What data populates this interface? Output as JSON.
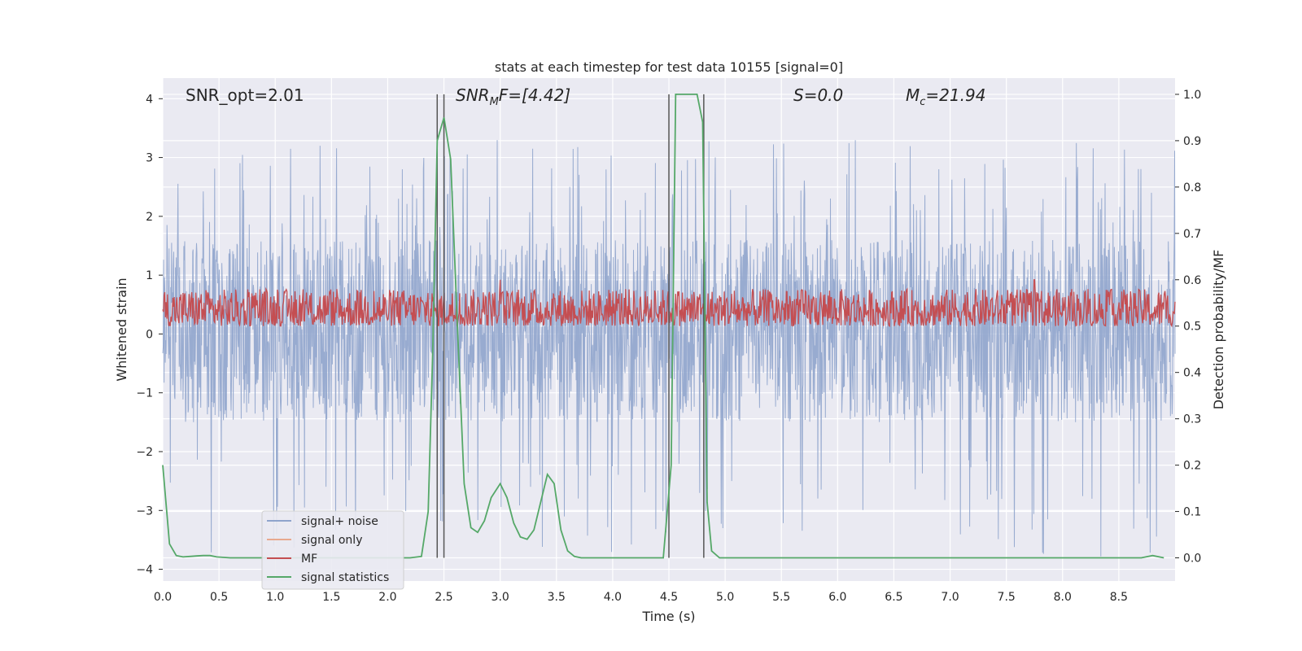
{
  "chart_data": {
    "type": "line",
    "title": "stats at each timestep for test data 10155 [signal=0]",
    "xlabel": "Time (s)",
    "ylabel_left": "Whitened strain",
    "ylabel_right": "Detection probability/MF",
    "xlim": [
      0.0,
      9.0
    ],
    "ylim_left": [
      -4.2,
      4.35
    ],
    "ylim_right": [
      -0.05,
      1.035
    ],
    "x_ticks": [
      "0.0",
      "0.5",
      "1.0",
      "1.5",
      "2.0",
      "2.5",
      "3.0",
      "3.5",
      "4.0",
      "4.5",
      "5.0",
      "5.5",
      "6.0",
      "6.5",
      "7.0",
      "7.5",
      "8.0",
      "8.5"
    ],
    "y_left_ticks": [
      "4",
      "3",
      "2",
      "1",
      "0",
      "−1",
      "−2",
      "−3",
      "−4"
    ],
    "y_right_ticks": [
      "1.0",
      "0.9",
      "0.8",
      "0.7",
      "0.6",
      "0.5",
      "0.4",
      "0.3",
      "0.2",
      "0.1",
      "0.0"
    ],
    "grid": true,
    "legend_position": "lower-left",
    "annotations": {
      "snr_opt": "SNR_opt=2.01",
      "snr_mf_base": "SNR",
      "snr_mf_sub": "M",
      "snr_mf_rest": "F=[4.42]",
      "s_label": "S=0.0",
      "mc_base": "M",
      "mc_sub": "c",
      "mc_rest": "=21.94"
    },
    "vertical_markers": [
      2.44,
      2.5,
      4.5,
      4.81
    ],
    "noise_envelope": {
      "typical_range": [
        -1.5,
        1.6
      ],
      "extreme_range": [
        -3.8,
        3.3
      ]
    },
    "series": [
      {
        "name": "signal+ noise",
        "color": "#8fa4cc",
        "axis": "left",
        "description_values": "dense noise, mostly within [-1.5, 1.6], peaks up to about 3.3 and down to about -3.8"
      },
      {
        "name": "signal only",
        "color": "#e8a98f",
        "axis": "left",
        "values": []
      },
      {
        "name": "MF",
        "color": "#c44e52",
        "axis": "right",
        "typical_range": [
          0.5,
          0.58
        ],
        "peak_values": [
          [
            0.92,
            0.58
          ],
          [
            3.0,
            0.6
          ],
          [
            7.75,
            0.6
          ]
        ]
      },
      {
        "name": "signal statistics",
        "color": "#55a868",
        "axis": "right",
        "x": [
          0.0,
          0.06,
          0.12,
          0.18,
          0.24,
          0.3,
          0.36,
          0.42,
          0.48,
          0.6,
          1.0,
          1.5,
          2.0,
          2.2,
          2.3,
          2.36,
          2.4,
          2.44,
          2.5,
          2.56,
          2.62,
          2.68,
          2.74,
          2.8,
          2.86,
          2.92,
          3.0,
          3.06,
          3.12,
          3.18,
          3.24,
          3.3,
          3.36,
          3.42,
          3.48,
          3.54,
          3.6,
          3.66,
          3.72,
          3.8,
          4.0,
          4.3,
          4.45,
          4.52,
          4.56,
          4.62,
          4.7,
          4.75,
          4.8,
          4.84,
          4.88,
          4.95,
          5.0,
          5.5,
          6.0,
          6.5,
          7.0,
          7.5,
          8.0,
          8.5,
          8.7,
          8.8,
          8.9
        ],
        "y": [
          0.2,
          0.03,
          0.005,
          0.002,
          0.003,
          0.004,
          0.005,
          0.005,
          0.002,
          0.0,
          0.0,
          0.0,
          0.0,
          0.0,
          0.003,
          0.1,
          0.44,
          0.9,
          0.95,
          0.86,
          0.5,
          0.16,
          0.065,
          0.055,
          0.08,
          0.13,
          0.16,
          0.13,
          0.075,
          0.045,
          0.04,
          0.06,
          0.12,
          0.18,
          0.16,
          0.06,
          0.015,
          0.003,
          0.0,
          0.0,
          0.0,
          0.0,
          0.0,
          0.2,
          1.0,
          1.0,
          1.0,
          1.0,
          0.94,
          0.12,
          0.015,
          0.0,
          0.0,
          0.0,
          0.0,
          0.0,
          0.0,
          0.0,
          0.0,
          0.0,
          0.0,
          0.005,
          0.0
        ]
      }
    ]
  }
}
